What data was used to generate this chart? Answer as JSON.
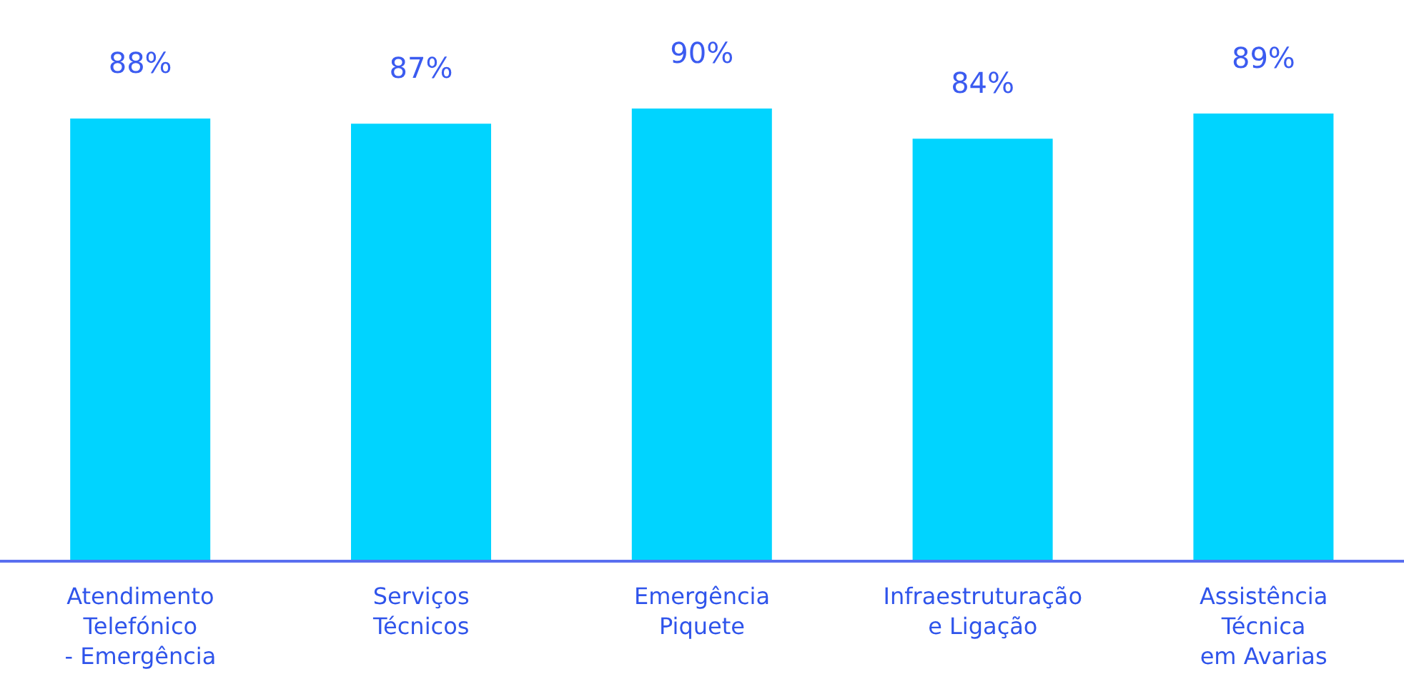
{
  "chart_data": {
    "type": "bar",
    "categories": [
      "Atendimento Telefónico - Emergência",
      "Serviços Técnicos",
      "Emergência Piquete",
      "Infraestruturação e Ligação",
      "Assistência Técnica em Avarias"
    ],
    "values": [
      88,
      87,
      90,
      84,
      89
    ],
    "color": "#00d4ff",
    "value_labels": [
      "88%",
      "87%",
      "90%",
      "84%",
      "89%"
    ],
    "grid": false,
    "legend": false
  }
}
